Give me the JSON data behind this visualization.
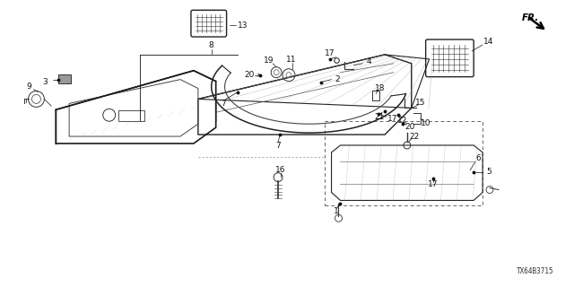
{
  "bg": "#ffffff",
  "diagram_id": "TX64B3715",
  "lw": 0.8,
  "parts_font": 6.5,
  "label_color": "#111111"
}
